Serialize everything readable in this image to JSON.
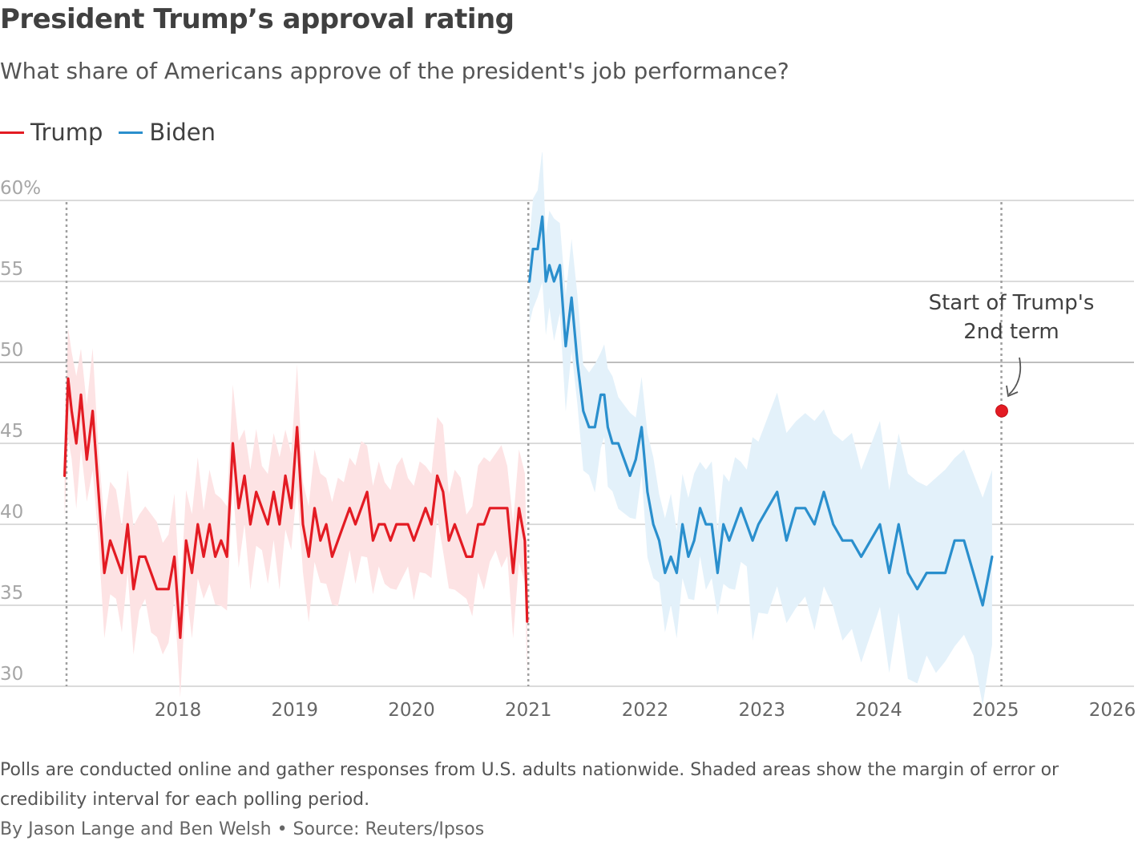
{
  "title": "President Trump’s approval rating",
  "subtitle": "What share of Americans approve of the president's job performance?",
  "legend": [
    {
      "label": "Trump",
      "color": "#e31b23"
    },
    {
      "label": "Biden",
      "color": "#2a8fcd"
    }
  ],
  "note": "Polls are conducted online and gather responses from U.S. adults nationwide. Shaded areas show the margin of error or credibility interval for each polling period.",
  "byline": "By Jason Lange and Ben Welsh • Source: Reuters/Ipsos",
  "chart_data": {
    "type": "line",
    "title": "President Trump’s approval rating",
    "xlabel": "",
    "ylabel": "",
    "y_ticks": [
      "60%",
      "55",
      "50",
      "45",
      "40",
      "35",
      "30"
    ],
    "y_tick_values": [
      60,
      55,
      50,
      45,
      40,
      35,
      30
    ],
    "x_ticks": [
      "2018",
      "2019",
      "2020",
      "2021",
      "2022",
      "2023",
      "2024",
      "2025",
      "2026"
    ],
    "x_tick_values": [
      2018,
      2019,
      2020,
      2021,
      2022,
      2023,
      2024,
      2025,
      2026
    ],
    "xlim": [
      2017.0,
      2026.0
    ],
    "ylim": [
      30,
      60
    ],
    "grid": true,
    "legend_position": "top-left",
    "margin_of_error": 2.6,
    "reference_lines": [
      2017.05,
      2021.0,
      2025.05
    ],
    "series": [
      {
        "name": "Trump",
        "color": "#e31b23",
        "band_color": "#fde3e4",
        "x": [
          2017.03,
          2017.06,
          2017.09,
          2017.13,
          2017.17,
          2017.22,
          2017.27,
          2017.32,
          2017.37,
          2017.42,
          2017.47,
          2017.52,
          2017.57,
          2017.62,
          2017.67,
          2017.72,
          2017.77,
          2017.82,
          2017.87,
          2017.92,
          2017.97,
          2018.02,
          2018.07,
          2018.12,
          2018.17,
          2018.22,
          2018.27,
          2018.32,
          2018.37,
          2018.42,
          2018.47,
          2018.52,
          2018.57,
          2018.62,
          2018.67,
          2018.72,
          2018.77,
          2018.82,
          2018.87,
          2018.92,
          2018.97,
          2019.02,
          2019.07,
          2019.12,
          2019.17,
          2019.22,
          2019.27,
          2019.32,
          2019.37,
          2019.42,
          2019.47,
          2019.52,
          2019.57,
          2019.62,
          2019.67,
          2019.72,
          2019.77,
          2019.82,
          2019.87,
          2019.92,
          2019.97,
          2020.02,
          2020.07,
          2020.12,
          2020.17,
          2020.22,
          2020.27,
          2020.32,
          2020.37,
          2020.42,
          2020.47,
          2020.52,
          2020.57,
          2020.62,
          2020.67,
          2020.72,
          2020.77,
          2020.82,
          2020.87,
          2020.92,
          2020.97,
          2020.99
        ],
        "y": [
          43,
          49,
          47,
          45,
          48,
          44,
          47,
          42,
          37,
          39,
          38,
          37,
          40,
          36,
          38,
          38,
          37,
          36,
          36,
          36,
          38,
          33,
          39,
          37,
          40,
          38,
          40,
          38,
          39,
          38,
          45,
          41,
          43,
          40,
          42,
          41,
          40,
          42,
          40,
          43,
          41,
          46,
          40,
          38,
          41,
          39,
          40,
          38,
          39,
          40,
          41,
          40,
          41,
          42,
          39,
          40,
          40,
          39,
          40,
          40,
          40,
          39,
          40,
          41,
          40,
          43,
          42,
          39,
          40,
          39,
          38,
          38,
          40,
          40,
          41,
          41,
          41,
          41,
          37,
          41,
          39,
          34
        ]
      },
      {
        "name": "Biden",
        "color": "#2a8fcd",
        "band_color": "#e3f1fa",
        "x": [
          2021.01,
          2021.04,
          2021.08,
          2021.12,
          2021.15,
          2021.18,
          2021.22,
          2021.27,
          2021.32,
          2021.37,
          2021.42,
          2021.47,
          2021.52,
          2021.57,
          2021.62,
          2021.65,
          2021.68,
          2021.72,
          2021.77,
          2021.82,
          2021.87,
          2021.92,
          2021.97,
          2022.02,
          2022.07,
          2022.12,
          2022.17,
          2022.22,
          2022.27,
          2022.32,
          2022.37,
          2022.42,
          2022.47,
          2022.52,
          2022.57,
          2022.62,
          2022.67,
          2022.72,
          2022.77,
          2022.82,
          2022.87,
          2022.92,
          2022.97,
          2023.05,
          2023.13,
          2023.21,
          2023.29,
          2023.37,
          2023.45,
          2023.53,
          2023.61,
          2023.69,
          2023.77,
          2023.85,
          2023.93,
          2024.01,
          2024.09,
          2024.17,
          2024.25,
          2024.33,
          2024.41,
          2024.49,
          2024.57,
          2024.65,
          2024.73,
          2024.81,
          2024.89,
          2024.97
        ],
        "y": [
          55,
          57,
          57,
          59,
          55,
          56,
          55,
          56,
          51,
          54,
          50,
          47,
          46,
          46,
          48,
          48,
          46,
          45,
          45,
          44,
          43,
          44,
          46,
          42,
          40,
          39,
          37,
          38,
          37,
          40,
          38,
          39,
          41,
          40,
          40,
          37,
          40,
          39,
          40,
          41,
          40,
          39,
          40,
          41,
          42,
          39,
          41,
          41,
          40,
          42,
          40,
          39,
          39,
          38,
          39,
          40,
          37,
          40,
          37,
          36,
          37,
          37,
          37,
          39,
          39,
          37,
          35,
          38
        ]
      },
      {
        "name": "Trump",
        "color": "#e31b23",
        "x": [
          2025.08
        ],
        "y": [
          47
        ]
      }
    ],
    "annotations": [
      {
        "text_lines": [
          "Start of Trump's",
          "2nd term"
        ]
      }
    ]
  }
}
